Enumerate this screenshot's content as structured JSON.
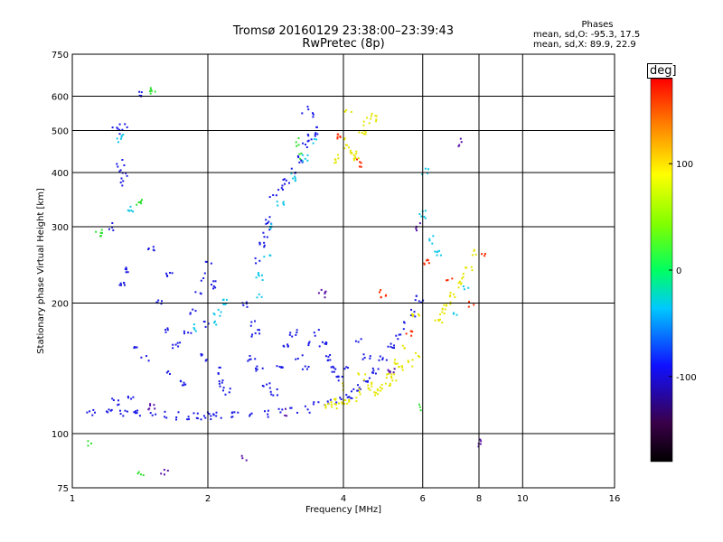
{
  "header": {
    "title_line1": "Tromsø 20160129 23:38:00–23:39:43",
    "title_line2": "RwPretec (8p)"
  },
  "phase_stats": {
    "heading": "Phases",
    "line_o": "mean, sd,O: -95.3, 17.5",
    "line_x": "mean, sd,X:  89.9, 22.9"
  },
  "colorbar": {
    "unit": "deg",
    "ticks": [
      "100",
      "0",
      "-100"
    ],
    "tick_values": [
      100,
      0,
      -100
    ],
    "range": [
      -180,
      180
    ]
  },
  "chart_data": {
    "type": "scatter",
    "xlabel": "Frequency [MHz]",
    "ylabel": "Stationary phase Virtual Height [km]",
    "x_scale": "log",
    "y_scale": "log",
    "xlim": [
      1,
      16
    ],
    "ylim": [
      75,
      750
    ],
    "xticks": [
      1,
      2,
      4,
      6,
      8,
      10,
      16
    ],
    "yticks": [
      75,
      100,
      200,
      300,
      400,
      500,
      600,
      750
    ],
    "grid": true,
    "color_variable": "phase [deg]",
    "traces": [
      {
        "color": "blue",
        "phase": -100,
        "points": [
          [
            1.1,
            112
          ],
          [
            1.2,
            113
          ],
          [
            1.3,
            112
          ],
          [
            1.4,
            111
          ],
          [
            1.5,
            110
          ],
          [
            1.6,
            110
          ],
          [
            1.7,
            110
          ],
          [
            1.8,
            110
          ],
          [
            1.9,
            110
          ],
          [
            2.0,
            110
          ],
          [
            2.1,
            110
          ],
          [
            2.3,
            110
          ],
          [
            2.5,
            111
          ],
          [
            2.7,
            111
          ],
          [
            2.9,
            112
          ],
          [
            3.1,
            113
          ],
          [
            3.3,
            114
          ],
          [
            3.5,
            116
          ],
          [
            3.7,
            118
          ],
          [
            3.9,
            120
          ],
          [
            4.1,
            123
          ],
          [
            4.3,
            128
          ],
          [
            4.5,
            134
          ],
          [
            4.7,
            140
          ],
          [
            4.9,
            148
          ],
          [
            5.1,
            158
          ],
          [
            5.3,
            168
          ],
          [
            5.5,
            178
          ],
          [
            5.7,
            190
          ],
          [
            5.9,
            205
          ]
        ]
      },
      {
        "color": "blue",
        "phase": -100,
        "points": [
          [
            1.55,
            200
          ],
          [
            1.6,
            175
          ],
          [
            1.7,
            160
          ],
          [
            1.8,
            170
          ],
          [
            1.85,
            190
          ],
          [
            1.9,
            210
          ],
          [
            1.95,
            230
          ],
          [
            2.0,
            250
          ],
          [
            2.05,
            220
          ],
          [
            2.0,
            180
          ],
          [
            1.95,
            150
          ],
          [
            2.1,
            140
          ],
          [
            2.15,
            130
          ],
          [
            2.2,
            125
          ],
          [
            1.75,
            130
          ],
          [
            1.65,
            140
          ],
          [
            1.45,
            150
          ],
          [
            1.35,
            120
          ],
          [
            1.25,
            118
          ]
        ]
      },
      {
        "color": "blue",
        "phase": -100,
        "points": [
          [
            2.4,
            200
          ],
          [
            2.5,
            180
          ],
          [
            2.55,
            170
          ],
          [
            2.6,
            250
          ],
          [
            2.65,
            270
          ],
          [
            2.7,
            290
          ],
          [
            2.72,
            310
          ],
          [
            2.8,
            350
          ],
          [
            2.9,
            370
          ],
          [
            3.0,
            380
          ],
          [
            3.1,
            400
          ],
          [
            3.2,
            430
          ],
          [
            3.3,
            460
          ],
          [
            3.4,
            480
          ],
          [
            3.5,
            500
          ],
          [
            3.45,
            540
          ],
          [
            3.3,
            560
          ]
        ]
      },
      {
        "color": "blue",
        "phase": -100,
        "points": [
          [
            2.5,
            150
          ],
          [
            2.6,
            140
          ],
          [
            2.7,
            130
          ],
          [
            2.8,
            125
          ],
          [
            2.9,
            145
          ],
          [
            3.0,
            160
          ],
          [
            3.1,
            170
          ],
          [
            3.2,
            150
          ],
          [
            3.3,
            140
          ],
          [
            3.4,
            160
          ],
          [
            3.5,
            170
          ],
          [
            3.6,
            160
          ],
          [
            3.7,
            150
          ],
          [
            3.8,
            140
          ],
          [
            3.9,
            135
          ],
          [
            4.1,
            140
          ],
          [
            4.3,
            165
          ],
          [
            4.5,
            150
          ]
        ]
      },
      {
        "color": "blue",
        "phase": -100,
        "points": [
          [
            1.25,
            500
          ],
          [
            1.3,
            510
          ],
          [
            1.28,
            420
          ],
          [
            1.3,
            400
          ],
          [
            1.27,
            380
          ],
          [
            1.4,
            610
          ],
          [
            1.22,
            300
          ],
          [
            1.33,
            240
          ],
          [
            1.5,
            270
          ],
          [
            1.65,
            230
          ],
          [
            1.3,
            220
          ],
          [
            1.4,
            160
          ]
        ]
      },
      {
        "color": "yellow",
        "phase": 100,
        "points": [
          [
            3.7,
            115
          ],
          [
            3.8,
            116
          ],
          [
            3.9,
            118
          ],
          [
            4.0,
            118
          ],
          [
            4.2,
            121
          ],
          [
            4.4,
            124
          ],
          [
            4.6,
            126
          ],
          [
            4.8,
            128
          ],
          [
            5.0,
            130
          ],
          [
            5.2,
            135
          ],
          [
            5.4,
            140
          ],
          [
            5.6,
            145
          ],
          [
            5.8,
            152
          ],
          [
            4.6,
            130
          ],
          [
            4.8,
            124
          ],
          [
            5.0,
            136
          ],
          [
            5.3,
            145
          ],
          [
            4.4,
            135
          ],
          [
            4.0,
            128
          ]
        ]
      },
      {
        "color": "yellow",
        "phase": 100,
        "points": [
          [
            4.1,
            450
          ],
          [
            4.2,
            440
          ],
          [
            4.3,
            430
          ],
          [
            4.4,
            500
          ],
          [
            4.5,
            520
          ],
          [
            4.6,
            540
          ],
          [
            4.7,
            530
          ],
          [
            3.9,
            430
          ],
          [
            4.0,
            470
          ],
          [
            4.1,
            560
          ]
        ]
      },
      {
        "color": "yellow",
        "phase": 100,
        "points": [
          [
            6.6,
            190
          ],
          [
            6.8,
            200
          ],
          [
            7.0,
            210
          ],
          [
            7.2,
            220
          ],
          [
            7.4,
            230
          ],
          [
            7.6,
            240
          ],
          [
            7.8,
            260
          ],
          [
            6.5,
            180
          ],
          [
            5.5,
            160
          ],
          [
            5.8,
            190
          ]
        ]
      },
      {
        "color": "cyan",
        "phase": -20,
        "points": [
          [
            2.6,
            230
          ],
          [
            2.7,
            260
          ],
          [
            2.8,
            300
          ],
          [
            2.9,
            340
          ],
          [
            3.1,
            390
          ],
          [
            3.3,
            430
          ],
          [
            3.5,
            470
          ],
          [
            2.05,
            180
          ],
          [
            2.1,
            190
          ],
          [
            2.2,
            200
          ],
          [
            1.9,
            175
          ],
          [
            2.6,
            210
          ]
        ]
      },
      {
        "color": "cyan",
        "phase": -20,
        "points": [
          [
            6.0,
            320
          ],
          [
            6.2,
            280
          ],
          [
            7.1,
            190
          ],
          [
            7.5,
            220
          ],
          [
            1.28,
            480
          ],
          [
            1.35,
            330
          ],
          [
            6.1,
            400
          ],
          [
            6.5,
            260
          ]
        ]
      },
      {
        "color": "red",
        "phase": 170,
        "points": [
          [
            4.9,
            210
          ],
          [
            5.6,
            170
          ],
          [
            6.1,
            250
          ],
          [
            6.9,
            230
          ],
          [
            8.2,
            260
          ],
          [
            7.7,
            200
          ],
          [
            3.9,
            480
          ],
          [
            4.3,
            420
          ]
        ]
      },
      {
        "color": "green",
        "phase": 20,
        "points": [
          [
            1.15,
            290
          ],
          [
            1.4,
            340
          ],
          [
            1.5,
            620
          ],
          [
            1.1,
            95
          ],
          [
            1.42,
            80
          ],
          [
            3.25,
            435
          ],
          [
            3.2,
            470
          ],
          [
            6.0,
            115
          ]
        ]
      },
      {
        "color": "purple",
        "phase": -140,
        "points": [
          [
            1.5,
            115
          ],
          [
            2.4,
            88
          ],
          [
            3.0,
            112
          ],
          [
            7.2,
            470
          ],
          [
            8.0,
            95
          ],
          [
            5.1,
            140
          ],
          [
            3.6,
            210
          ],
          [
            5.9,
            300
          ],
          [
            1.6,
            82
          ]
        ]
      }
    ]
  }
}
